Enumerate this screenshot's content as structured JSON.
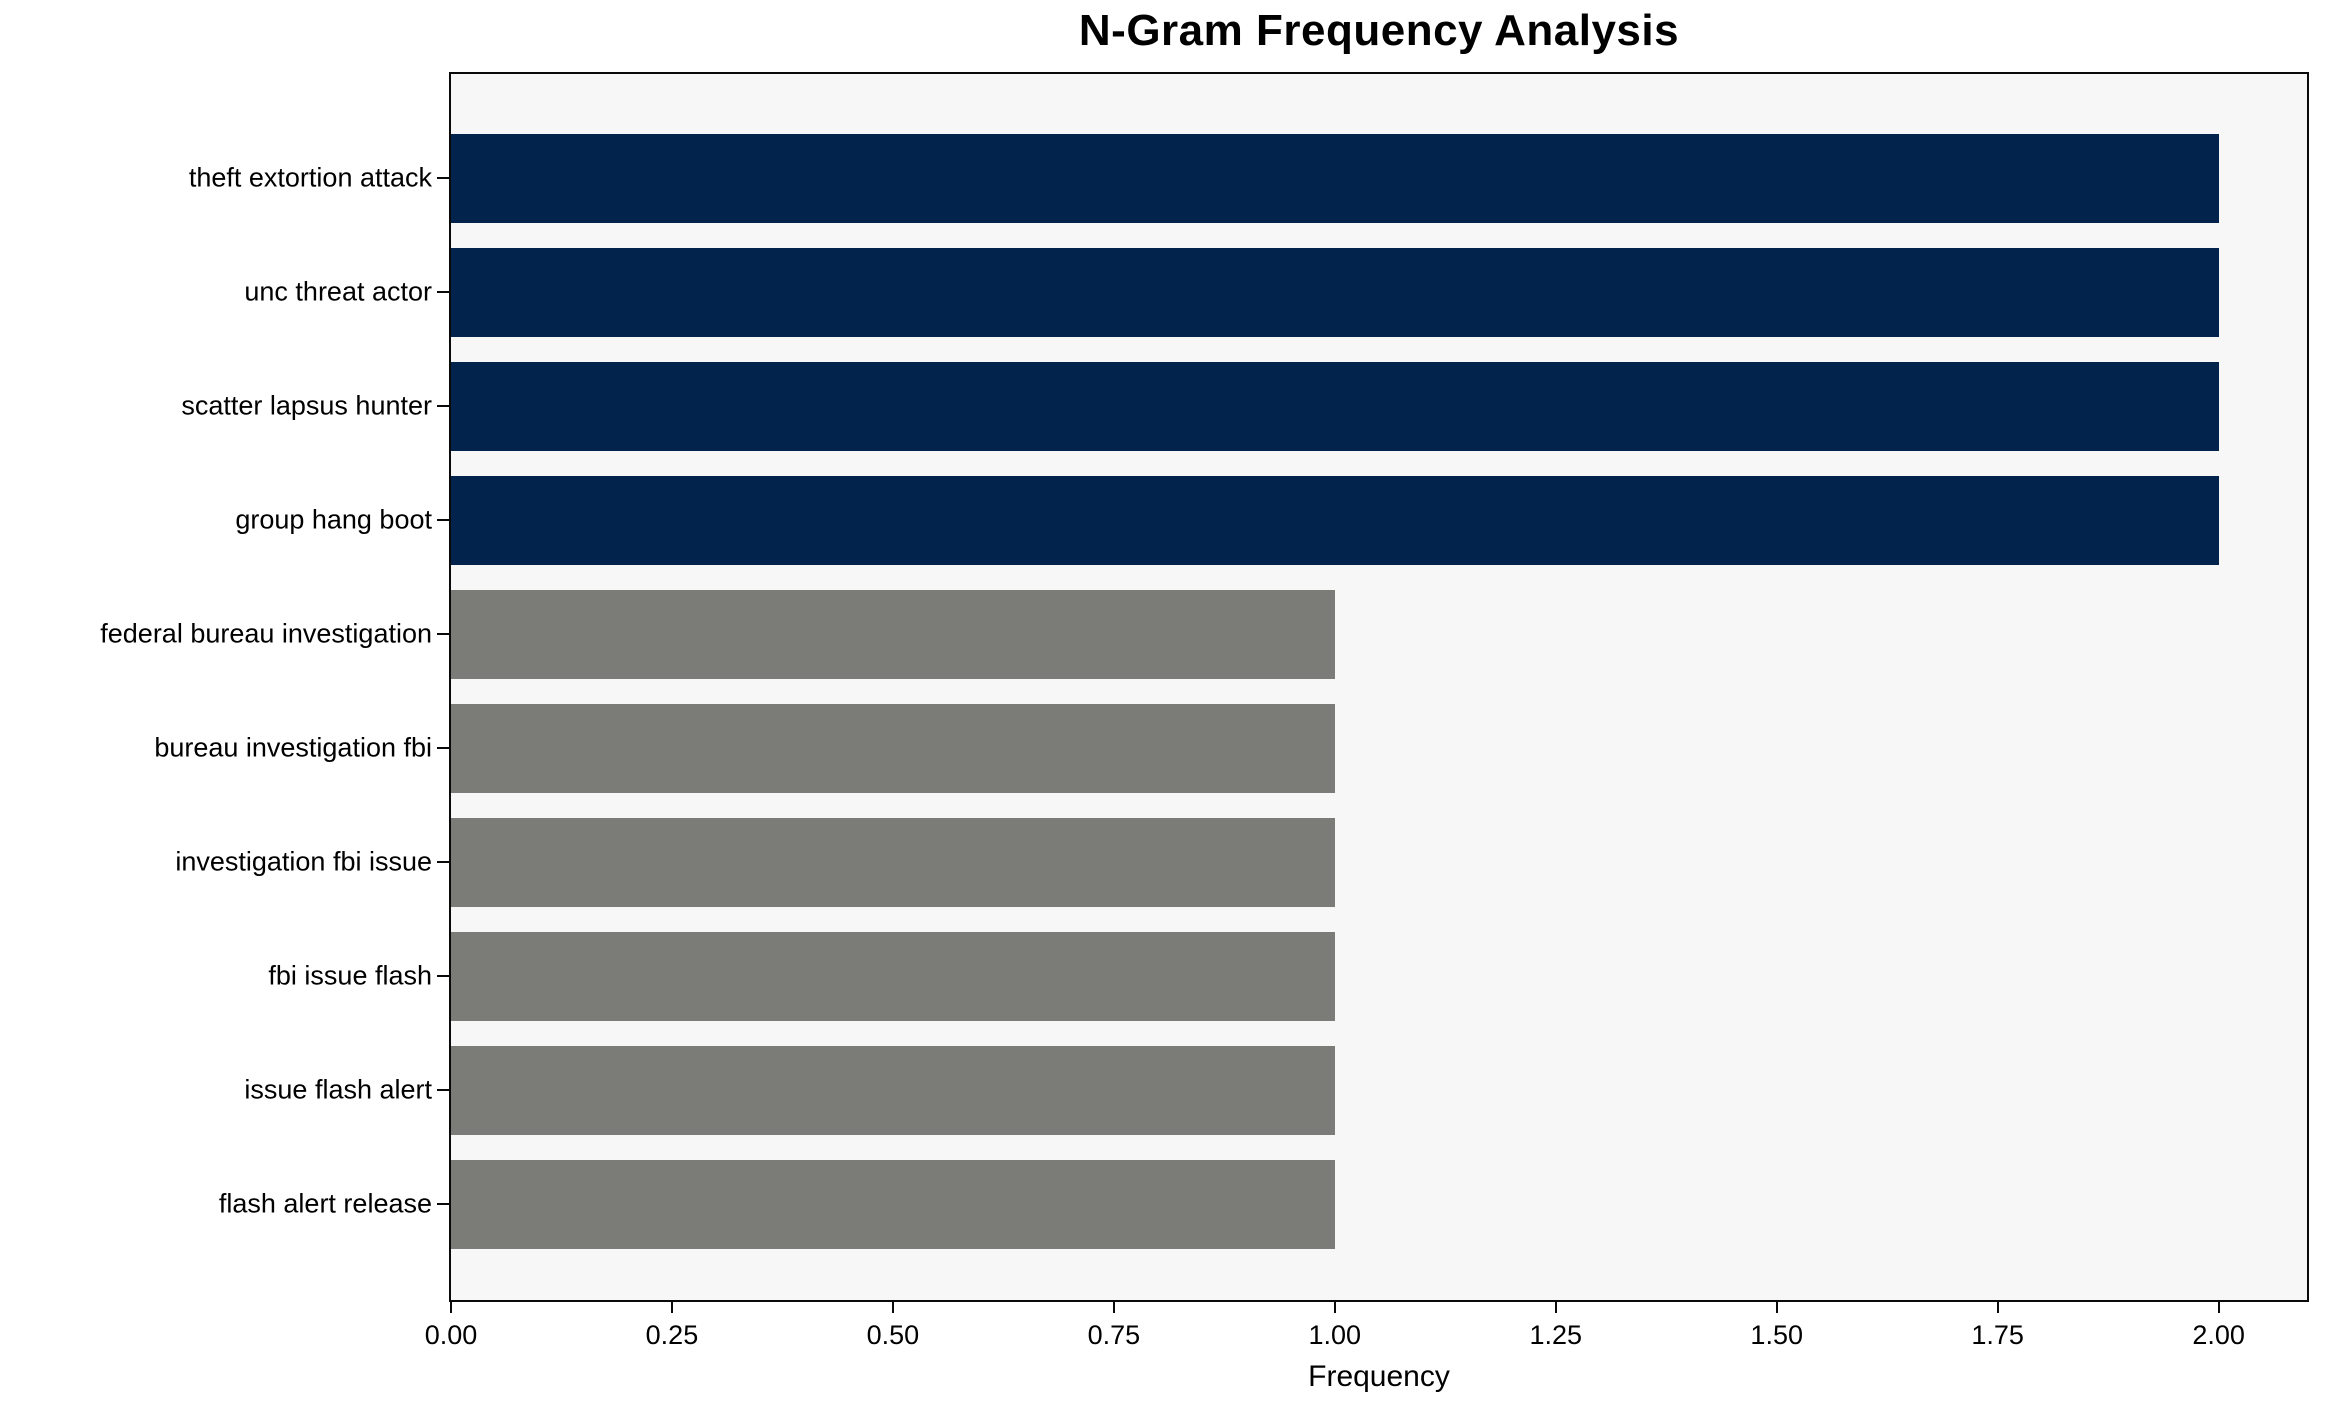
{
  "chart_data": {
    "type": "bar",
    "orientation": "horizontal",
    "title": "N-Gram Frequency Analysis",
    "xlabel": "Frequency",
    "ylabel": "",
    "categories": [
      "theft extortion attack",
      "unc threat actor",
      "scatter lapsus hunter",
      "group hang boot",
      "federal bureau investigation",
      "bureau investigation fbi",
      "investigation fbi issue",
      "fbi issue flash",
      "issue flash alert",
      "flash alert release"
    ],
    "values": [
      2,
      2,
      2,
      2,
      1,
      1,
      1,
      1,
      1,
      1
    ],
    "bar_colors": [
      "#02234c",
      "#02234c",
      "#02234c",
      "#02234c",
      "#7b7b78",
      "#7b7b78",
      "#7b7b78",
      "#7b7b78",
      "#7b7b78",
      "#7b7b78"
    ],
    "xlim": [
      0,
      2.1
    ],
    "xticks": [
      0,
      0.25,
      0.5,
      0.75,
      1.0,
      1.25,
      1.5,
      1.75,
      2.0
    ],
    "xtick_labels": [
      "0.00",
      "0.25",
      "0.50",
      "0.75",
      "1.00",
      "1.25",
      "1.50",
      "1.75",
      "2.00"
    ],
    "grid": false,
    "legend": "none"
  },
  "colors": {
    "figure_background": "#ffffff",
    "plot_background": "#f7f7f7",
    "spine": "#0a0a0a",
    "bar_high": "#02234c",
    "bar_low": "#7b7b78",
    "text": "#000000"
  }
}
